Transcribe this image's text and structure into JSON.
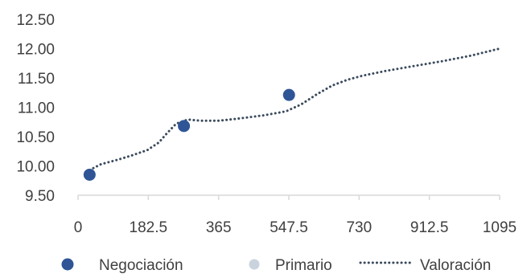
{
  "chart_data": {
    "type": "scatter",
    "xlim": [
      0,
      1095
    ],
    "ylim": [
      9.5,
      12.5
    ],
    "x_ticks": [
      "0",
      "182.5",
      "365",
      "547.5",
      "730",
      "912.5",
      "1095"
    ],
    "y_ticks": [
      "12.50",
      "12.00",
      "11.50",
      "11.00",
      "10.50",
      "10.00",
      "9.50"
    ],
    "grid": false,
    "legend_position": "bottom",
    "series": [
      {
        "name": "Negociación",
        "kind": "scatter",
        "color": "#2F5597",
        "points": [
          [
            30,
            9.85
          ],
          [
            275,
            10.68
          ],
          [
            548,
            11.21
          ]
        ]
      },
      {
        "name": "Primario",
        "kind": "scatter",
        "color": "#C9D3DE",
        "points": []
      },
      {
        "name": "Valoración",
        "kind": "line",
        "style": "dotted",
        "color": "#3B4A5C",
        "points": [
          [
            30,
            9.93
          ],
          [
            60,
            10.03
          ],
          [
            100,
            10.1
          ],
          [
            140,
            10.18
          ],
          [
            180,
            10.27
          ],
          [
            210,
            10.4
          ],
          [
            230,
            10.55
          ],
          [
            255,
            10.72
          ],
          [
            285,
            10.79
          ],
          [
            320,
            10.77
          ],
          [
            365,
            10.77
          ],
          [
            420,
            10.81
          ],
          [
            480,
            10.86
          ],
          [
            540,
            10.93
          ],
          [
            580,
            11.05
          ],
          [
            620,
            11.22
          ],
          [
            660,
            11.37
          ],
          [
            700,
            11.47
          ],
          [
            740,
            11.54
          ],
          [
            800,
            11.62
          ],
          [
            870,
            11.7
          ],
          [
            950,
            11.79
          ],
          [
            1020,
            11.88
          ],
          [
            1095,
            12.0
          ]
        ]
      }
    ]
  }
}
